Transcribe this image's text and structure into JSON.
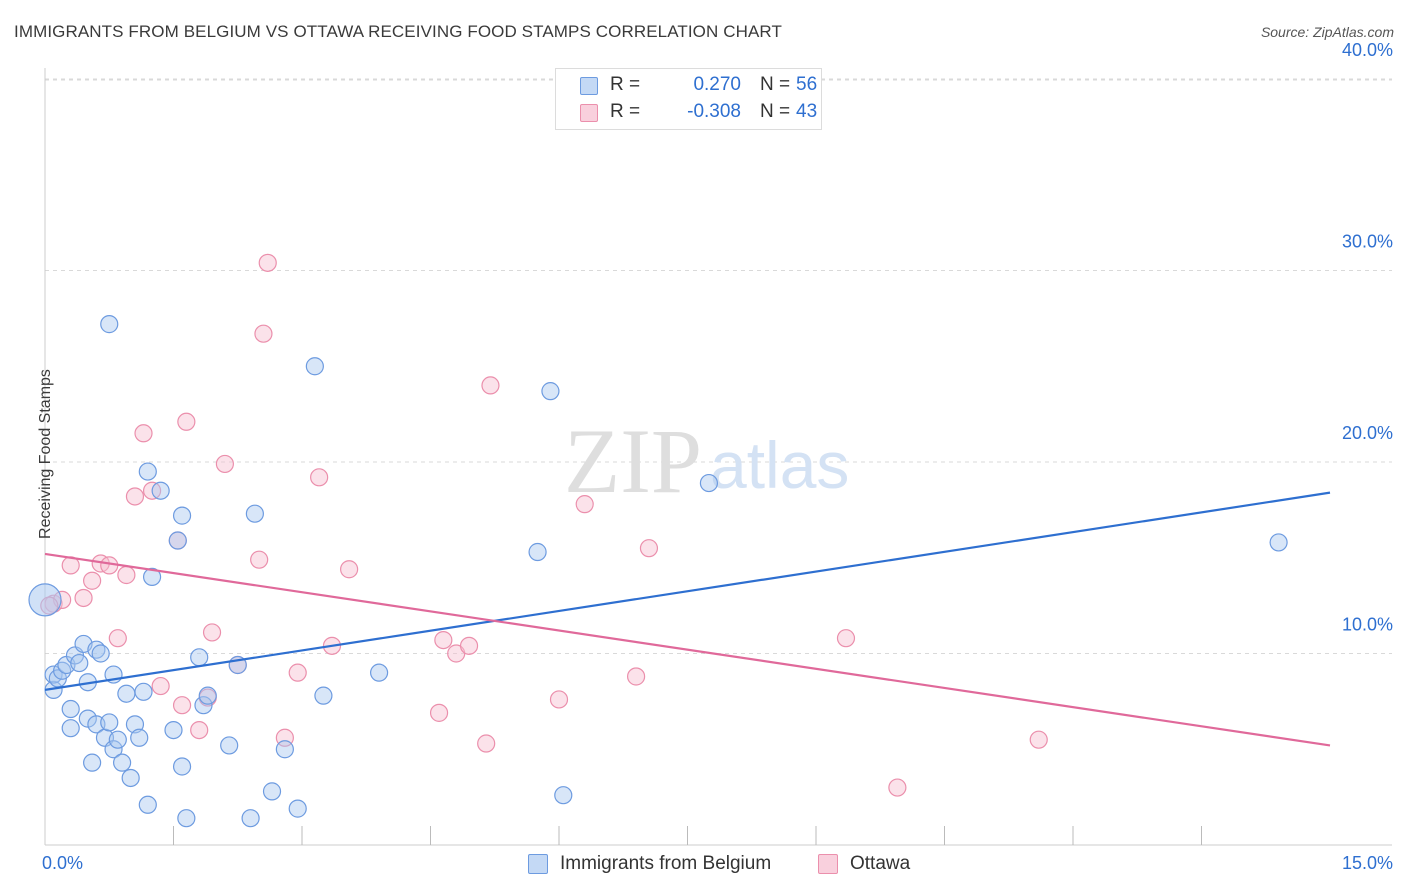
{
  "title": "IMMIGRANTS FROM BELGIUM VS OTTAWA RECEIVING FOOD STAMPS CORRELATION CHART",
  "source": "Source: ZipAtlas.com",
  "watermark": {
    "zip": "ZIP",
    "atlas": "atlas"
  },
  "colors": {
    "blue_fill": "#a9c8f0",
    "blue_stroke": "#6d9be0",
    "blue_line": "#2e6fd0",
    "pink_fill": "#f6bfd0",
    "pink_stroke": "#eb8fac",
    "pink_line": "#e0699a",
    "tick_text": "#2e6fd0",
    "grid": "#d9d9d9"
  },
  "legend": {
    "series1": {
      "r_label": "R =",
      "r_value": "0.270",
      "n_label": "N =",
      "n_value": "56"
    },
    "series2": {
      "r_label": "R =",
      "r_value": "-0.308",
      "n_label": "N =",
      "n_value": "43"
    }
  },
  "bottom_legend": {
    "series1": "Immigrants from Belgium",
    "series2": "Ottawa"
  },
  "chart_data": {
    "type": "scatter",
    "title": "IMMIGRANTS FROM BELGIUM VS OTTAWA RECEIVING FOOD STAMPS CORRELATION CHART",
    "xlabel": "",
    "ylabel": "Receiving Food Stamps",
    "xlim": [
      0,
      15
    ],
    "ylim": [
      0,
      40
    ],
    "x_tick_labels": [
      {
        "value": 0,
        "label": "0.0%"
      },
      {
        "value": 15,
        "label": "15.0%"
      }
    ],
    "y_tick_labels": [
      {
        "value": 10,
        "label": "10.0%"
      },
      {
        "value": 20,
        "label": "20.0%"
      },
      {
        "value": 30,
        "label": "30.0%"
      },
      {
        "value": 40,
        "label": "40.0%"
      }
    ],
    "x_minor_ticks": [
      1.5,
      3.0,
      4.5,
      6.0,
      7.5,
      9.0,
      10.5,
      12.0,
      13.5
    ],
    "grid": true,
    "legend_position": "top-center",
    "series": [
      {
        "name": "Immigrants from Belgium",
        "color": "#6d9be0",
        "trend": {
          "x": [
            0,
            15
          ],
          "y": [
            8.1,
            18.4
          ]
        },
        "points": [
          [
            0.0,
            12.8
          ],
          [
            0.1,
            8.1
          ],
          [
            0.1,
            8.9
          ],
          [
            0.15,
            8.7
          ],
          [
            0.2,
            9.1
          ],
          [
            0.25,
            9.4
          ],
          [
            0.3,
            6.1
          ],
          [
            0.3,
            7.1
          ],
          [
            0.35,
            9.9
          ],
          [
            0.4,
            9.5
          ],
          [
            0.45,
            10.5
          ],
          [
            0.5,
            8.5
          ],
          [
            0.5,
            6.6
          ],
          [
            0.55,
            4.3
          ],
          [
            0.6,
            6.3
          ],
          [
            0.6,
            10.2
          ],
          [
            0.65,
            10.0
          ],
          [
            0.7,
            5.6
          ],
          [
            0.75,
            6.4
          ],
          [
            0.8,
            5.0
          ],
          [
            0.8,
            8.9
          ],
          [
            0.85,
            5.5
          ],
          [
            0.9,
            4.3
          ],
          [
            0.95,
            7.9
          ],
          [
            1.0,
            3.5
          ],
          [
            1.05,
            6.3
          ],
          [
            1.1,
            5.6
          ],
          [
            1.15,
            8.0
          ],
          [
            1.2,
            2.1
          ],
          [
            1.25,
            14.0
          ],
          [
            1.35,
            18.5
          ],
          [
            1.5,
            6.0
          ],
          [
            1.6,
            4.1
          ],
          [
            1.65,
            1.4
          ],
          [
            1.8,
            9.8
          ],
          [
            1.85,
            7.3
          ],
          [
            1.9,
            7.8
          ],
          [
            2.15,
            5.2
          ],
          [
            2.25,
            9.4
          ],
          [
            2.4,
            1.4
          ],
          [
            2.45,
            17.3
          ],
          [
            2.65,
            2.8
          ],
          [
            2.8,
            5.0
          ],
          [
            2.95,
            1.9
          ],
          [
            3.15,
            25.0
          ],
          [
            3.25,
            7.8
          ],
          [
            3.9,
            9.0
          ],
          [
            0.75,
            27.2
          ],
          [
            1.2,
            19.5
          ],
          [
            1.6,
            17.2
          ],
          [
            1.55,
            15.9
          ],
          [
            5.75,
            15.3
          ],
          [
            5.9,
            23.7
          ],
          [
            6.05,
            2.6
          ],
          [
            7.75,
            18.9
          ],
          [
            14.4,
            15.8
          ]
        ]
      },
      {
        "name": "Ottawa",
        "color": "#eb8fac",
        "trend": {
          "x": [
            0,
            15
          ],
          "y": [
            15.2,
            5.2
          ]
        },
        "points": [
          [
            0.1,
            12.6
          ],
          [
            0.2,
            12.8
          ],
          [
            0.3,
            14.6
          ],
          [
            0.45,
            12.9
          ],
          [
            0.55,
            13.8
          ],
          [
            0.65,
            14.7
          ],
          [
            0.75,
            14.6
          ],
          [
            0.85,
            10.8
          ],
          [
            0.95,
            14.1
          ],
          [
            1.05,
            18.2
          ],
          [
            1.15,
            21.5
          ],
          [
            1.25,
            18.5
          ],
          [
            1.35,
            8.3
          ],
          [
            1.55,
            15.9
          ],
          [
            1.6,
            7.3
          ],
          [
            1.65,
            22.1
          ],
          [
            1.8,
            6.0
          ],
          [
            1.9,
            7.7
          ],
          [
            1.95,
            11.1
          ],
          [
            2.1,
            19.9
          ],
          [
            2.25,
            9.4
          ],
          [
            2.5,
            14.9
          ],
          [
            2.55,
            26.7
          ],
          [
            2.6,
            30.4
          ],
          [
            2.8,
            5.6
          ],
          [
            2.95,
            9.0
          ],
          [
            3.2,
            19.2
          ],
          [
            3.35,
            10.4
          ],
          [
            3.55,
            14.4
          ],
          [
            4.6,
            6.9
          ],
          [
            4.65,
            10.7
          ],
          [
            4.8,
            10.0
          ],
          [
            4.95,
            10.4
          ],
          [
            5.15,
            5.3
          ],
          [
            5.2,
            24.0
          ],
          [
            6.0,
            7.6
          ],
          [
            6.3,
            17.8
          ],
          [
            6.9,
            8.8
          ],
          [
            7.05,
            15.5
          ],
          [
            9.35,
            10.8
          ],
          [
            9.95,
            3.0
          ],
          [
            11.6,
            5.5
          ],
          [
            0.05,
            12.5
          ]
        ]
      }
    ]
  }
}
